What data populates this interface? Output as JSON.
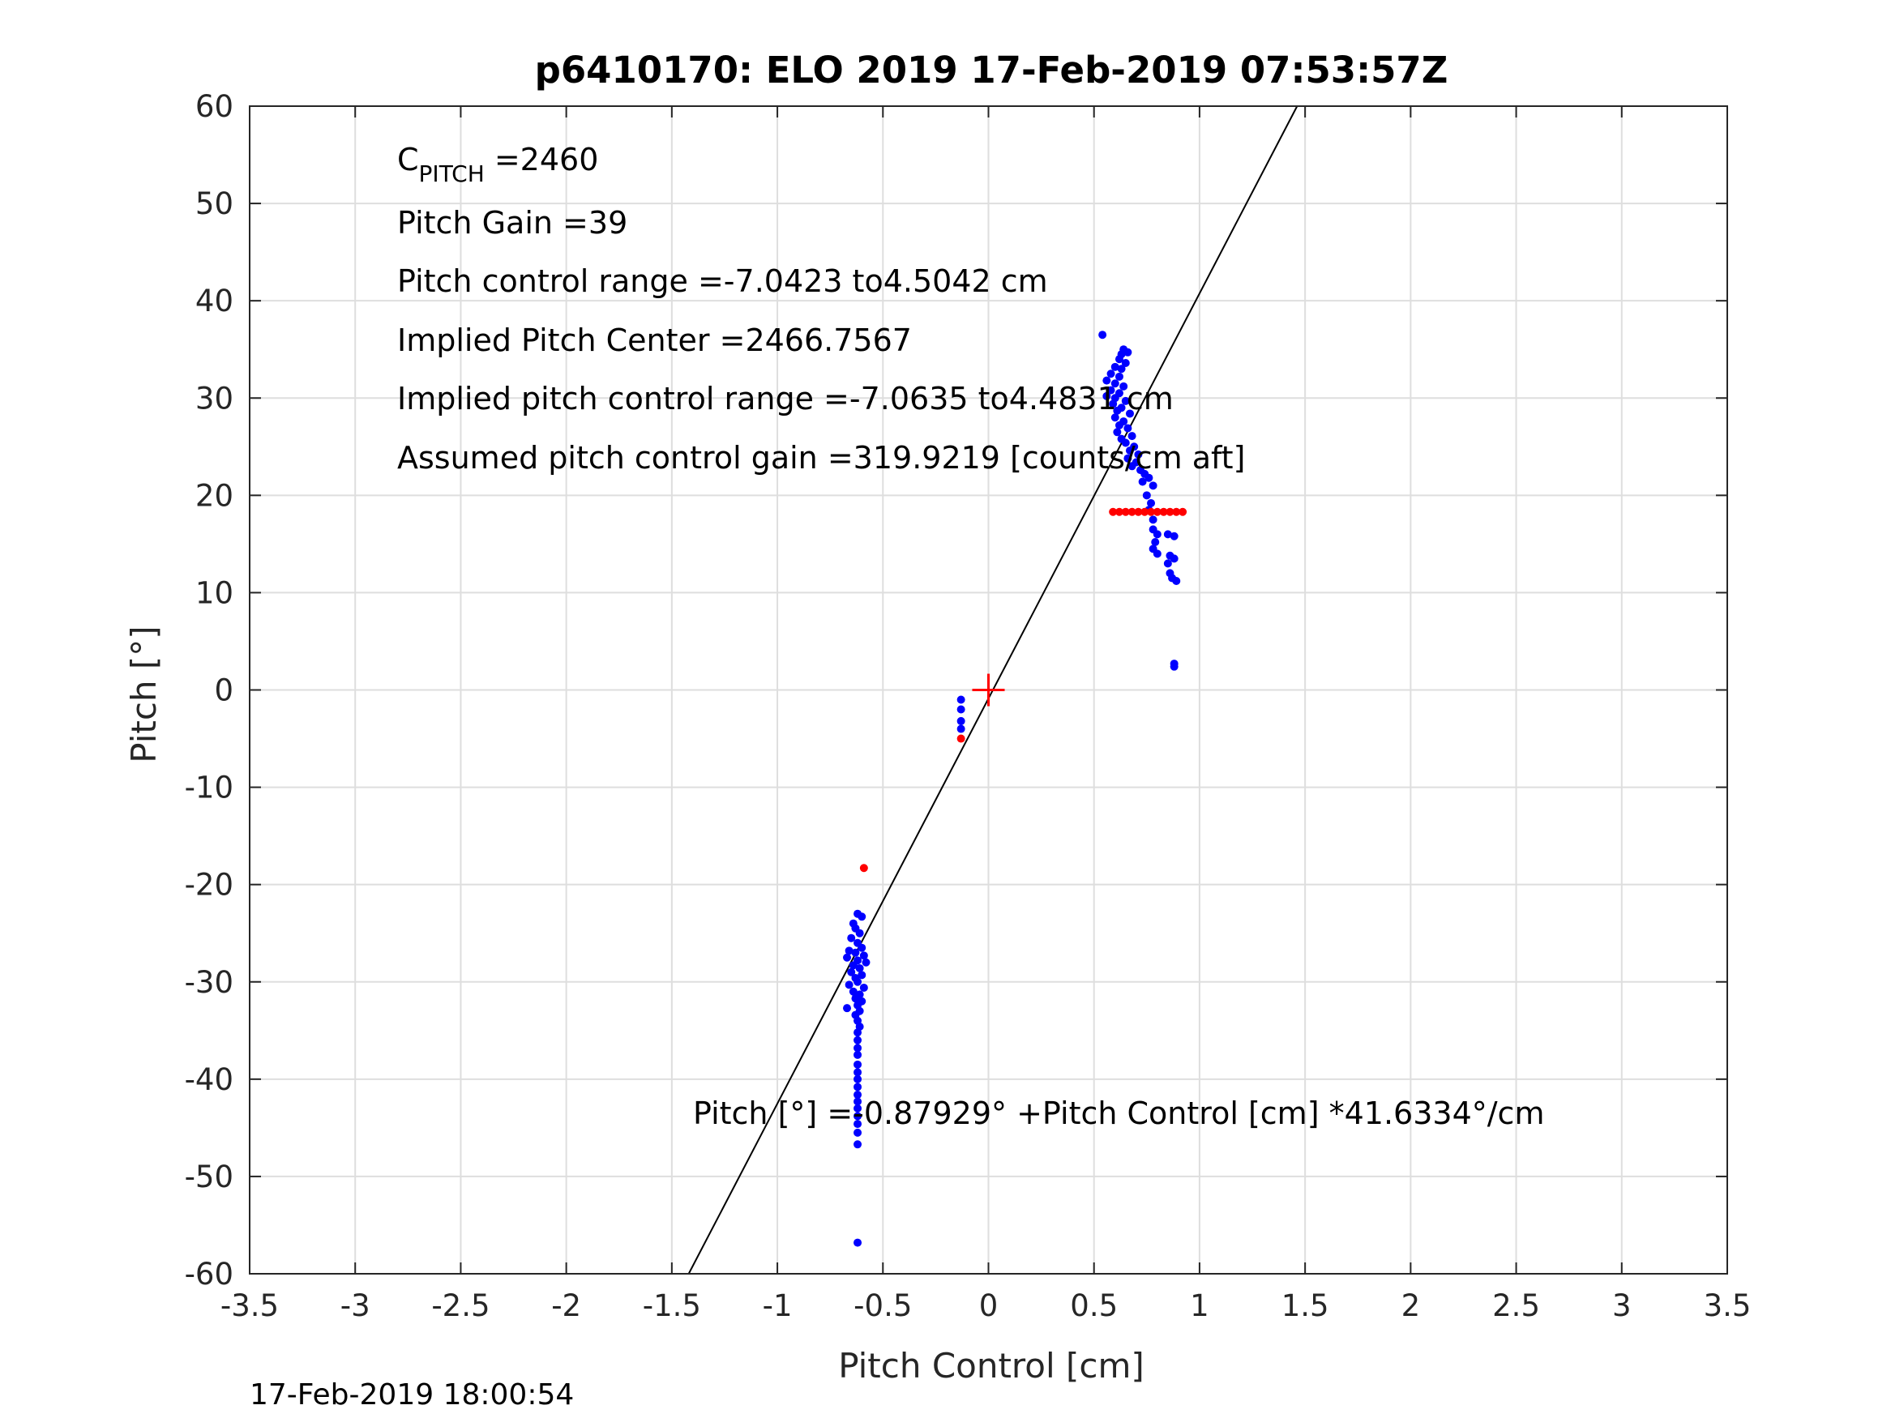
{
  "chart_data": {
    "type": "scatter",
    "title": "p6410170: ELO 2019 17-Feb-2019 07:53:57Z",
    "xlabel": "Pitch Control [cm]",
    "ylabel": "Pitch [°]",
    "xlim": [
      -3.5,
      3.5
    ],
    "ylim": [
      -60,
      60
    ],
    "xticks": [
      -3.5,
      -3,
      -2.5,
      -2,
      -1.5,
      -1,
      -0.5,
      0,
      0.5,
      1,
      1.5,
      2,
      2.5,
      3,
      3.5
    ],
    "xtick_labels": [
      "-3.5",
      "-3",
      "-2.5",
      "-2",
      "-1.5",
      "-1",
      "-0.5",
      "0",
      "0.5",
      "1",
      "1.5",
      "2",
      "2.5",
      "3",
      "3.5"
    ],
    "yticks": [
      -60,
      -50,
      -40,
      -30,
      -20,
      -10,
      0,
      10,
      20,
      30,
      40,
      50,
      60
    ],
    "ytick_labels": [
      "-60",
      "-50",
      "-40",
      "-30",
      "-20",
      "-10",
      "0",
      "10",
      "20",
      "30",
      "40",
      "50",
      "60"
    ],
    "grid": true,
    "annotations": {
      "cpitch_symbol": "C",
      "cpitch_subscript": "PITCH",
      "cpitch_value": " =2460",
      "pitch_gain": "Pitch Gain =39",
      "pitch_control_range": "Pitch control range =-7.0423 to4.5042 cm",
      "implied_center": "Implied Pitch Center =2466.7567",
      "implied_range": "Implied pitch control range =-7.0635 to4.4831 cm",
      "assumed_gain": "Assumed pitch control gain =319.9219 [counts/cm aft]",
      "fit_equation": "Pitch [°] =-0.87929° +Pitch Control [cm] *41.6334°/cm"
    },
    "timestamp": "17-Feb-2019 18:00:54",
    "fit_line": {
      "intercept": -0.87929,
      "slope": 41.6334
    },
    "center_marker": {
      "x": 0,
      "y": 0
    },
    "colors": {
      "samples": "#0000ff",
      "bins": "#ff0000",
      "fit": "#000000",
      "marker": "#ff0000"
    },
    "series": [
      {
        "color": "#0000ff",
        "points": [
          [
            -0.13,
            -1.0
          ],
          [
            -0.13,
            -2.0
          ],
          [
            -0.13,
            -3.2
          ],
          [
            -0.13,
            -4.0
          ],
          [
            -0.62,
            -23.0
          ],
          [
            -0.6,
            -23.3
          ],
          [
            -0.64,
            -24.0
          ],
          [
            -0.63,
            -24.5
          ],
          [
            -0.61,
            -25.0
          ],
          [
            -0.65,
            -25.5
          ],
          [
            -0.62,
            -26.0
          ],
          [
            -0.6,
            -26.5
          ],
          [
            -0.66,
            -26.8
          ],
          [
            -0.63,
            -27.0
          ],
          [
            -0.59,
            -27.3
          ],
          [
            -0.67,
            -27.5
          ],
          [
            -0.62,
            -27.8
          ],
          [
            -0.58,
            -28.0
          ],
          [
            -0.64,
            -28.3
          ],
          [
            -0.61,
            -28.6
          ],
          [
            -0.65,
            -29.0
          ],
          [
            -0.6,
            -29.3
          ],
          [
            -0.63,
            -29.6
          ],
          [
            -0.62,
            -30.0
          ],
          [
            -0.66,
            -30.3
          ],
          [
            -0.59,
            -30.6
          ],
          [
            -0.64,
            -31.0
          ],
          [
            -0.61,
            -31.3
          ],
          [
            -0.63,
            -31.7
          ],
          [
            -0.6,
            -32.0
          ],
          [
            -0.62,
            -32.4
          ],
          [
            -0.67,
            -32.7
          ],
          [
            -0.61,
            -33.0
          ],
          [
            -0.63,
            -33.4
          ],
          [
            -0.62,
            -34.0
          ],
          [
            -0.61,
            -34.6
          ],
          [
            -0.62,
            -35.2
          ],
          [
            -0.62,
            -36.0
          ],
          [
            -0.62,
            -36.8
          ],
          [
            -0.62,
            -37.5
          ],
          [
            -0.62,
            -38.5
          ],
          [
            -0.62,
            -39.3
          ],
          [
            -0.62,
            -40.0
          ],
          [
            -0.62,
            -40.8
          ],
          [
            -0.62,
            -41.6
          ],
          [
            -0.62,
            -42.3
          ],
          [
            -0.62,
            -43.0
          ],
          [
            -0.62,
            -43.8
          ],
          [
            -0.62,
            -44.6
          ],
          [
            -0.62,
            -45.5
          ],
          [
            -0.62,
            -46.7
          ],
          [
            -0.62,
            -56.8
          ],
          [
            0.54,
            36.5
          ],
          [
            0.64,
            35.0
          ],
          [
            0.63,
            34.5
          ],
          [
            0.66,
            34.7
          ],
          [
            0.62,
            34.0
          ],
          [
            0.65,
            33.6
          ],
          [
            0.6,
            33.2
          ],
          [
            0.63,
            33.0
          ],
          [
            0.58,
            32.5
          ],
          [
            0.62,
            32.2
          ],
          [
            0.56,
            31.8
          ],
          [
            0.6,
            31.5
          ],
          [
            0.64,
            31.2
          ],
          [
            0.58,
            30.8
          ],
          [
            0.62,
            30.5
          ],
          [
            0.56,
            30.2
          ],
          [
            0.6,
            30.0
          ],
          [
            0.65,
            29.7
          ],
          [
            0.59,
            29.4
          ],
          [
            0.63,
            29.0
          ],
          [
            0.61,
            28.7
          ],
          [
            0.67,
            28.4
          ],
          [
            0.6,
            28.0
          ],
          [
            0.64,
            27.6
          ],
          [
            0.62,
            27.2
          ],
          [
            0.66,
            26.9
          ],
          [
            0.61,
            26.5
          ],
          [
            0.68,
            26.1
          ],
          [
            0.63,
            25.8
          ],
          [
            0.65,
            25.4
          ],
          [
            0.69,
            25.0
          ],
          [
            0.67,
            24.6
          ],
          [
            0.71,
            24.2
          ],
          [
            0.66,
            23.8
          ],
          [
            0.7,
            23.4
          ],
          [
            0.68,
            23.0
          ],
          [
            0.72,
            22.6
          ],
          [
            0.74,
            22.2
          ],
          [
            0.76,
            21.8
          ],
          [
            0.73,
            21.4
          ],
          [
            0.78,
            21.0
          ],
          [
            0.75,
            20.0
          ],
          [
            0.77,
            19.2
          ],
          [
            0.76,
            18.5
          ],
          [
            0.78,
            17.5
          ],
          [
            0.78,
            16.5
          ],
          [
            0.8,
            16.0
          ],
          [
            0.85,
            16.0
          ],
          [
            0.88,
            15.8
          ],
          [
            0.79,
            15.2
          ],
          [
            0.78,
            14.5
          ],
          [
            0.8,
            14.0
          ],
          [
            0.86,
            13.8
          ],
          [
            0.88,
            13.5
          ],
          [
            0.85,
            13.0
          ],
          [
            0.86,
            12.0
          ],
          [
            0.87,
            11.5
          ],
          [
            0.89,
            11.2
          ],
          [
            0.88,
            2.7
          ],
          [
            0.88,
            2.4
          ]
        ]
      },
      {
        "color": "#ff0000",
        "points": [
          [
            -0.59,
            -18.3
          ],
          [
            -0.13,
            -5.0
          ],
          [
            0.59,
            18.3
          ],
          [
            0.62,
            18.3
          ],
          [
            0.65,
            18.3
          ],
          [
            0.68,
            18.3
          ],
          [
            0.71,
            18.3
          ],
          [
            0.74,
            18.3
          ],
          [
            0.77,
            18.3
          ],
          [
            0.8,
            18.3
          ],
          [
            0.83,
            18.3
          ],
          [
            0.86,
            18.3
          ],
          [
            0.89,
            18.3
          ],
          [
            0.92,
            18.3
          ]
        ]
      }
    ]
  }
}
